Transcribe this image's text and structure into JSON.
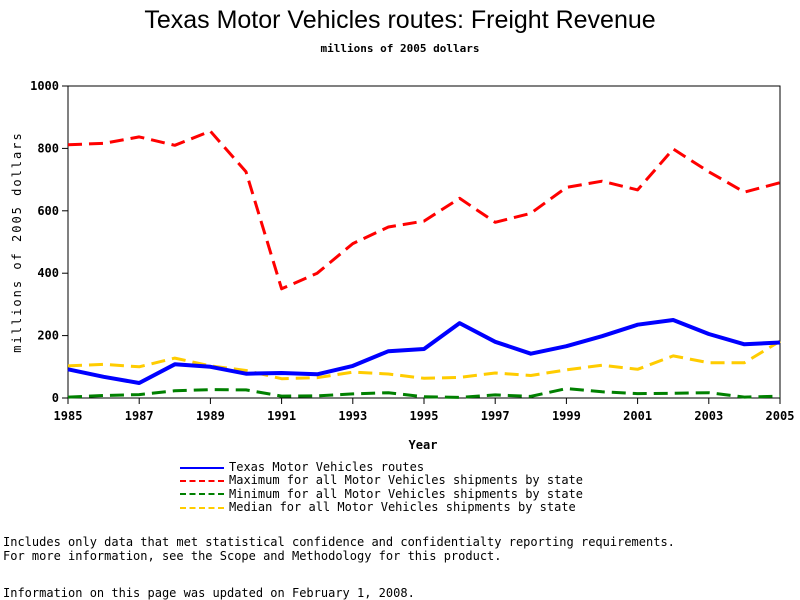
{
  "chart_data": {
    "type": "line",
    "title": "Texas Motor Vehicles routes: Freight Revenue",
    "subtitle": "millions of 2005 dollars",
    "xlabel": "Year",
    "ylabel": "millions of 2005 dollars",
    "xlim": [
      1985,
      2005
    ],
    "ylim": [
      0,
      1000
    ],
    "xticks": [
      1985,
      1987,
      1989,
      1991,
      1993,
      1995,
      1997,
      1999,
      2001,
      2003,
      2005
    ],
    "yticks": [
      0,
      200,
      400,
      600,
      800,
      1000
    ],
    "grid": false,
    "legend_position": "bottom",
    "x": [
      1985,
      1986,
      1987,
      1988,
      1989,
      1990,
      1991,
      1992,
      1993,
      1994,
      1995,
      1996,
      1997,
      1998,
      1999,
      2000,
      2001,
      2002,
      2003,
      2004,
      2005
    ],
    "series": [
      {
        "name": "Texas Motor Vehicles routes",
        "color": "#0000ff",
        "style": "solid",
        "values": [
          92,
          68,
          48,
          108,
          100,
          78,
          80,
          76,
          103,
          150,
          157,
          240,
          180,
          142,
          166,
          198,
          235,
          250,
          205,
          172,
          178
        ]
      },
      {
        "name": "Maximum for all Motor Vehicles shipments by state",
        "color": "#ff0000",
        "style": "dashed",
        "values": [
          812,
          816,
          837,
          810,
          855,
          725,
          350,
          400,
          495,
          548,
          567,
          640,
          563,
          592,
          675,
          695,
          667,
          798,
          725,
          660,
          690
        ]
      },
      {
        "name": "Minimum for all Motor Vehicles shipments by state",
        "color": "#008000",
        "style": "dashed",
        "values": [
          3,
          8,
          11,
          23,
          27,
          26,
          6,
          7,
          13,
          17,
          4,
          2,
          10,
          5,
          30,
          20,
          14,
          15,
          17,
          3,
          6
        ]
      },
      {
        "name": "Median for all Motor Vehicles shipments by state",
        "color": "#ffcc00",
        "style": "dashed",
        "values": [
          103,
          108,
          100,
          128,
          103,
          88,
          62,
          65,
          83,
          77,
          63,
          66,
          80,
          72,
          90,
          105,
          92,
          135,
          113,
          113,
          182
        ]
      }
    ]
  },
  "notes": {
    "line1": "Includes only data that met statistical confidence and confidentialty reporting requirements.",
    "line2": "For more information, see the Scope and Methodology for this product.",
    "updated": "Information on this page was updated on February 1, 2008."
  }
}
